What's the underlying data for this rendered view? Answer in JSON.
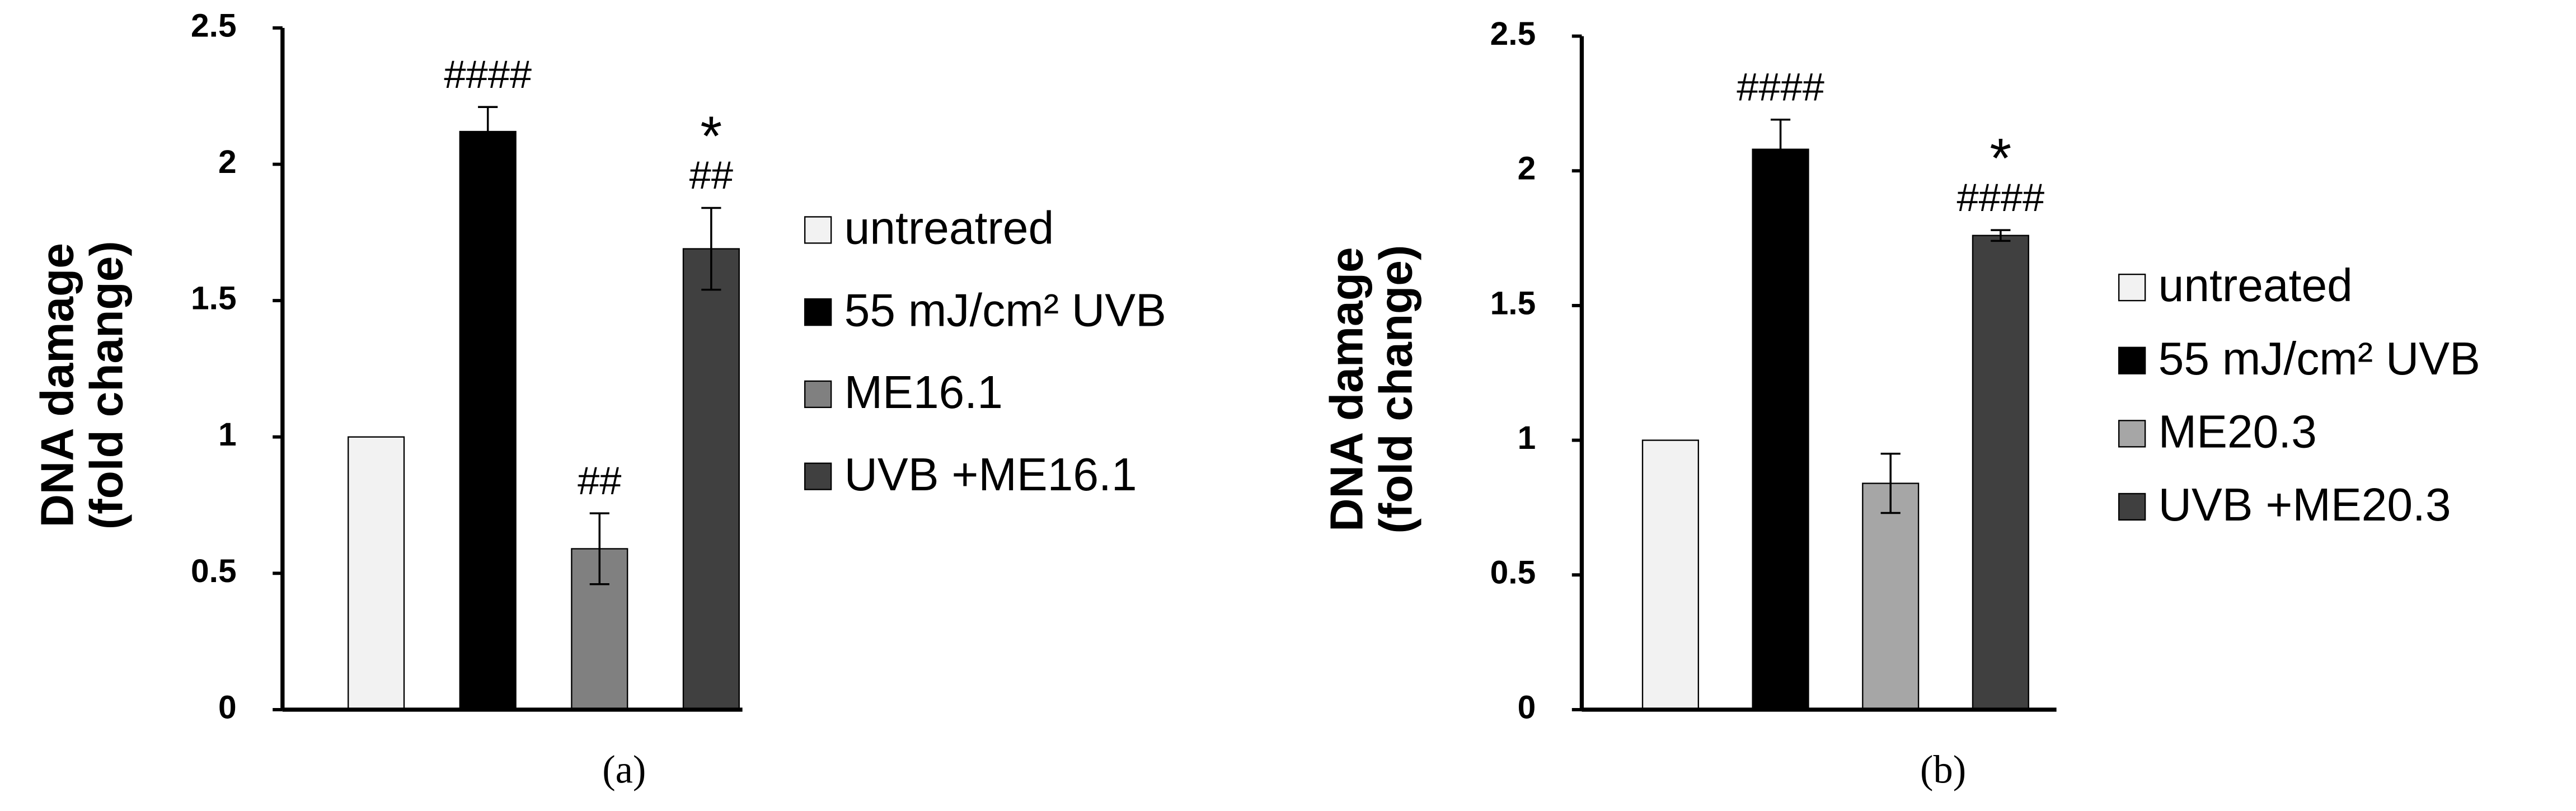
{
  "chart_data": [
    {
      "type": "bar",
      "ylabel": [
        "DNA damage",
        "(fold change)"
      ],
      "caption": "(a)",
      "ylim": [
        0,
        2.5
      ],
      "yticks": [
        0,
        0.5,
        1,
        1.5,
        2,
        2.5
      ],
      "series": [
        {
          "name": "untreatred",
          "color": "#f2f2f2",
          "values": [
            1.0
          ]
        },
        {
          "name": "55 mJ/cm² UVB",
          "color": "#000000",
          "values": [
            2.12
          ],
          "errors": [
            0.09
          ],
          "annotations": [
            "####"
          ]
        },
        {
          "name": "ME16.1",
          "color": "#808080",
          "values": [
            0.59
          ],
          "errors": [
            0.13
          ],
          "annotations": [
            "##"
          ]
        },
        {
          "name": "UVB +ME16.1",
          "color": "#404040",
          "values": [
            1.69
          ],
          "errors": [
            0.15
          ],
          "annotations": [
            "*",
            "##"
          ]
        }
      ]
    },
    {
      "type": "bar",
      "ylabel": [
        "DNA damage",
        "(fold change)"
      ],
      "caption": "(b)",
      "ylim": [
        0,
        2.5
      ],
      "yticks": [
        0,
        0.5,
        1,
        1.5,
        2,
        2.5
      ],
      "series": [
        {
          "name": "untreated",
          "color": "#f2f2f2",
          "values": [
            1.0
          ]
        },
        {
          "name": "55 mJ/cm² UVB",
          "color": "#000000",
          "values": [
            2.08
          ],
          "errors": [
            0.11
          ],
          "annotations": [
            "####"
          ]
        },
        {
          "name": "ME20.3",
          "color": "#a6a6a6",
          "values": [
            0.84
          ],
          "errors": [
            0.11
          ]
        },
        {
          "name": "UVB +ME20.3",
          "color": "#404040",
          "values": [
            1.76
          ],
          "errors": [
            0.02
          ],
          "annotations": [
            "*",
            "####"
          ]
        }
      ]
    }
  ]
}
